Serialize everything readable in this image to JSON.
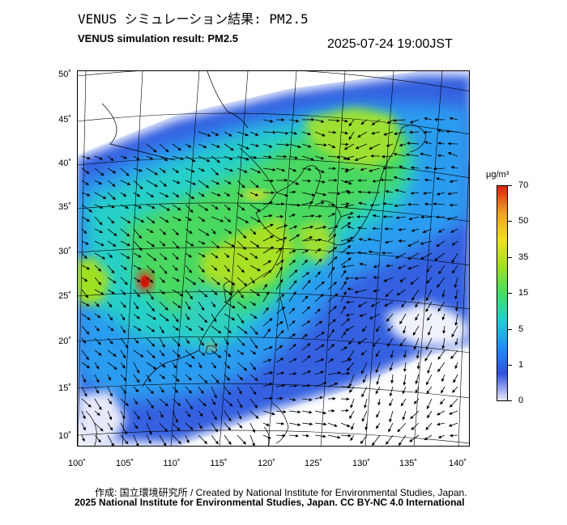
{
  "header": {
    "title_jp": "VENUS シミュレーション結果: PM2.5",
    "title_en": "VENUS simulation result: PM2.5",
    "timestamp": "2025-07-24 19:00JST"
  },
  "map": {
    "lat_ticks": [
      "50˚",
      "45˚",
      "40˚",
      "35˚",
      "30˚",
      "25˚",
      "20˚",
      "15˚",
      "10˚"
    ],
    "lon_ticks": [
      "100˚",
      "105˚",
      "110˚",
      "115˚",
      "120˚",
      "125˚",
      "130˚",
      "135˚",
      "140˚"
    ],
    "layers": [
      "PM2.5 concentration field",
      "wind vectors",
      "coastlines",
      "graticule"
    ],
    "hotspot_color": "#e02010"
  },
  "colorbar": {
    "unit": "μg/m³",
    "labels": [
      "70",
      "50",
      "35",
      "15",
      "5",
      "1",
      "0"
    ],
    "colors": [
      "#e8e8f8",
      "#3050e0",
      "#2090ff",
      "#20d0d0",
      "#40e060",
      "#a0e020",
      "#f0e020",
      "#f0a020",
      "#e02010"
    ]
  },
  "footer": {
    "credit": "作成: 国立環境研究所 / Created by National Institute for Environmental Studies, Japan.",
    "license": "2025 National Institute for Environmental Studies, Japan. CC BY-NC 4.0 International"
  }
}
